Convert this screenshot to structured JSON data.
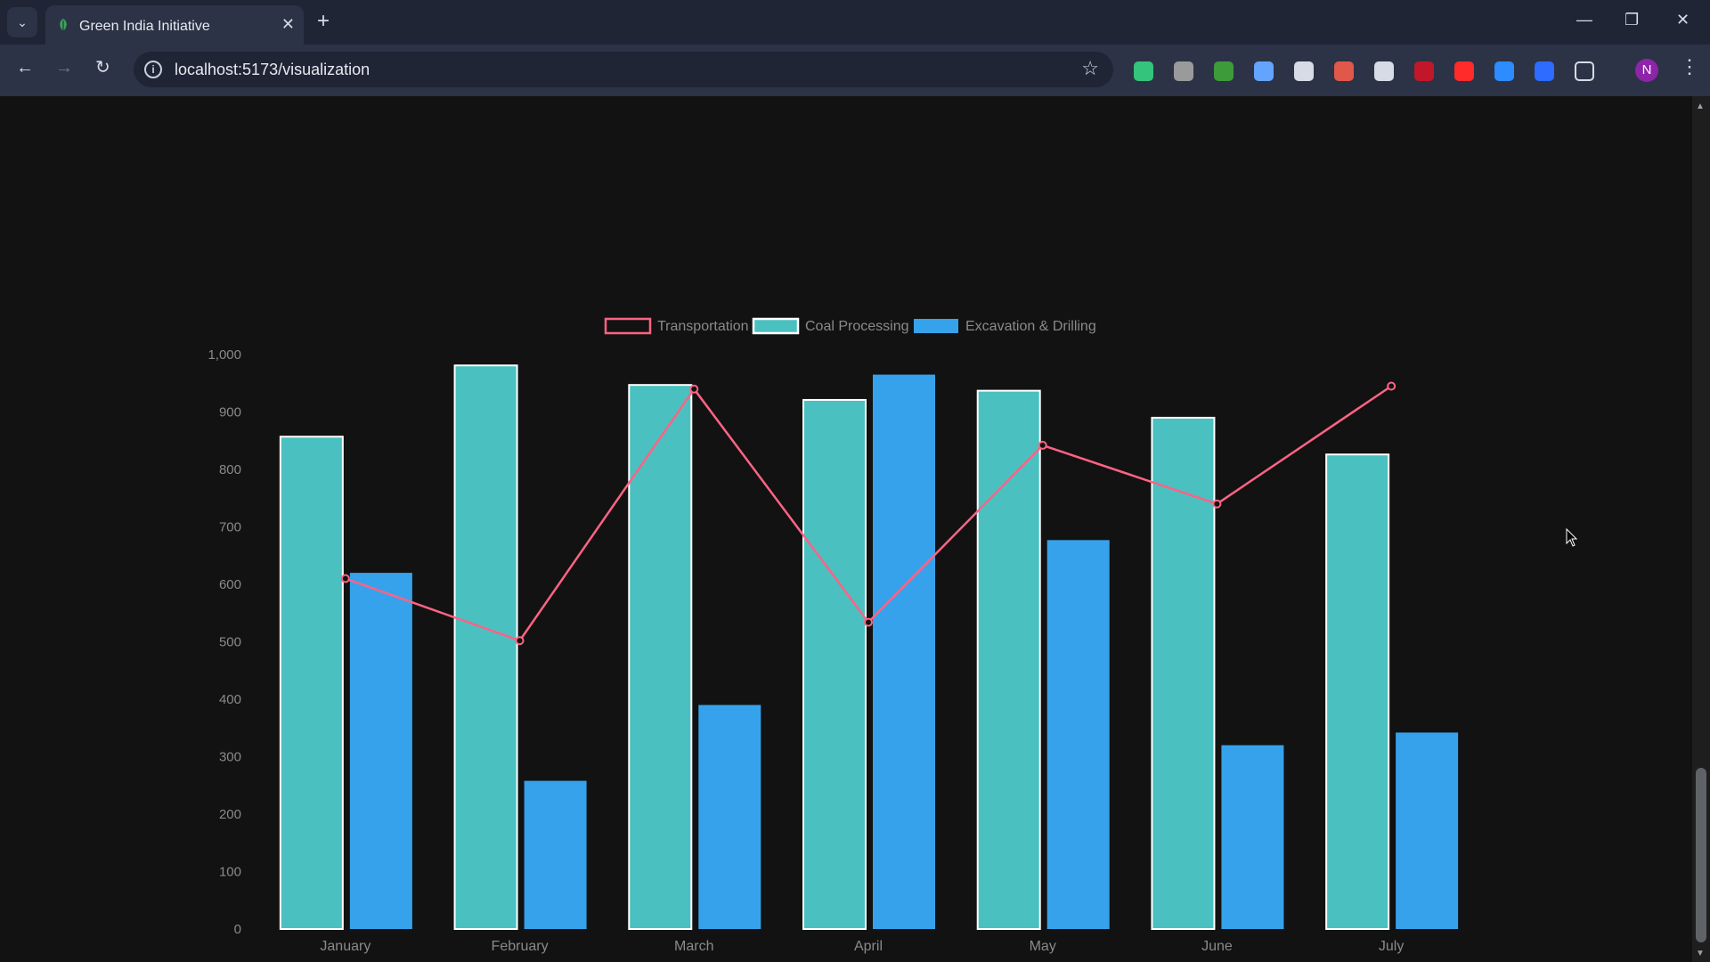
{
  "browser": {
    "tab_title": "Green India Initiative",
    "tab_close": "✕",
    "new_tab": "+",
    "tab_list": "⌄",
    "url": "localhost:5173/visualization",
    "profile_initial": "N",
    "window_controls": {
      "minimize": "—",
      "restore": "❐",
      "close": "✕"
    },
    "nav": {
      "back": "←",
      "forward": "→",
      "reload": "↻",
      "site_info": "i",
      "bookmark": "☆",
      "menu": "⋮"
    },
    "extensions": [
      {
        "name": "shield-extension-icon",
        "color": "#34c47c"
      },
      {
        "name": "figure-extension-icon",
        "color": "#9a9a9a"
      },
      {
        "name": "tree-extension-icon",
        "color": "#3e9b3a"
      },
      {
        "name": "landscape-extension-icon",
        "color": "#63a4ff"
      },
      {
        "name": "target-extension-icon",
        "color": "#d6dbe6"
      },
      {
        "name": "flower-extension-icon",
        "color": "#e0584a"
      },
      {
        "name": "glasses-extension-icon",
        "color": "#d6dbe6"
      },
      {
        "name": "ublock-extension-icon",
        "color": "#c0182a"
      },
      {
        "name": "youtube-extension-icon",
        "color": "#ff2a2a"
      },
      {
        "name": "bird-extension-icon",
        "color": "#2d8cff"
      },
      {
        "name": "zoom-extension-icon",
        "color": "#2d6cff"
      },
      {
        "name": "puzzle-extensions-icon",
        "color": "#d6dbe6"
      }
    ]
  },
  "chart_data": {
    "type": "bar",
    "categories": [
      "January",
      "February",
      "March",
      "April",
      "May",
      "June",
      "July"
    ],
    "series": [
      {
        "name": "Transportation",
        "type": "line",
        "color": "#ff6384",
        "values": [
          610,
          502,
          940,
          534,
          842,
          740,
          945
        ]
      },
      {
        "name": "Coal Processing",
        "type": "bar",
        "color": "#4bc0c0",
        "border": "#ffffff",
        "values": [
          857,
          981,
          947,
          921,
          937,
          890,
          826
        ]
      },
      {
        "name": "Excavation & Drilling",
        "type": "bar",
        "color": "#36a2eb",
        "values": [
          620,
          258,
          390,
          965,
          677,
          320,
          342
        ]
      }
    ],
    "yticks": [
      "0",
      "100",
      "200",
      "300",
      "400",
      "500",
      "600",
      "700",
      "800",
      "900",
      "1,000"
    ],
    "ylim": [
      0,
      1000
    ],
    "legend": "top",
    "title": "",
    "xlabel": "",
    "ylabel": ""
  }
}
